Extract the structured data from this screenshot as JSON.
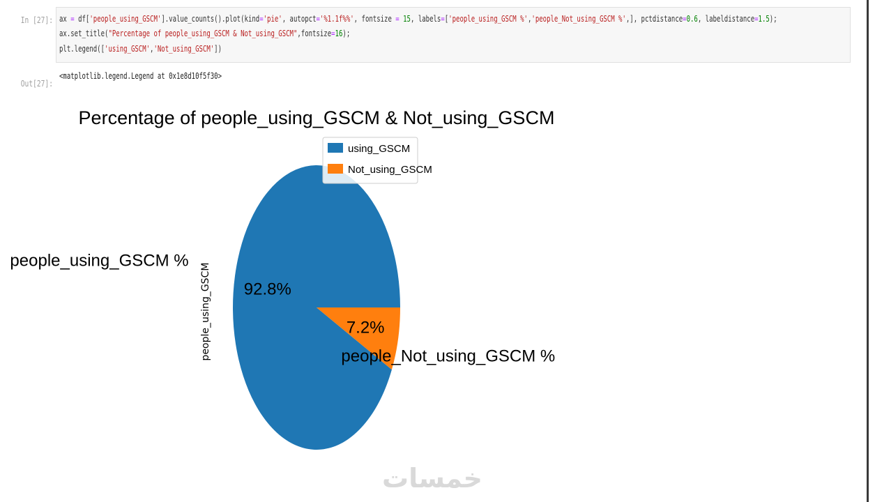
{
  "notebook": {
    "in_prompt": "In [27]:",
    "out_prompt": "Out[27]:",
    "code_lines": [
      [
        {
          "t": "ax ",
          "c": "kw"
        },
        {
          "t": "=",
          "c": "op"
        },
        {
          "t": " df[",
          "c": "kw"
        },
        {
          "t": "'people_using_GSCM'",
          "c": "str"
        },
        {
          "t": "].value_counts().plot(kind",
          "c": "kw"
        },
        {
          "t": "=",
          "c": "op"
        },
        {
          "t": "'pie'",
          "c": "str"
        },
        {
          "t": ", autopct",
          "c": "kw"
        },
        {
          "t": "=",
          "c": "op"
        },
        {
          "t": "'%1.1f%%'",
          "c": "str"
        },
        {
          "t": ", fontsize ",
          "c": "kw"
        },
        {
          "t": "=",
          "c": "op"
        },
        {
          "t": " ",
          "c": "kw"
        },
        {
          "t": "15",
          "c": "num"
        },
        {
          "t": ", labels",
          "c": "kw"
        },
        {
          "t": "=",
          "c": "op"
        },
        {
          "t": "[",
          "c": "kw"
        },
        {
          "t": "'people_using_GSCM %'",
          "c": "str"
        },
        {
          "t": ",",
          "c": "kw"
        },
        {
          "t": "'people_Not_using_GSCM %'",
          "c": "str"
        },
        {
          "t": ",], pctdistance",
          "c": "kw"
        },
        {
          "t": "=",
          "c": "op"
        },
        {
          "t": "0.6",
          "c": "num"
        },
        {
          "t": ", labeldistance",
          "c": "kw"
        },
        {
          "t": "=",
          "c": "op"
        },
        {
          "t": "1.5",
          "c": "num"
        },
        {
          "t": ");",
          "c": "kw"
        }
      ],
      [
        {
          "t": "ax.set_title(",
          "c": "kw"
        },
        {
          "t": "\"Percentage of people_using_GSCM & Not_using_GSCM\"",
          "c": "str"
        },
        {
          "t": ",fontsize",
          "c": "kw"
        },
        {
          "t": "=",
          "c": "op"
        },
        {
          "t": "16",
          "c": "num"
        },
        {
          "t": ");",
          "c": "kw"
        }
      ],
      [
        {
          "t": "plt.legend([",
          "c": "kw"
        },
        {
          "t": "'using_GSCM'",
          "c": "str"
        },
        {
          "t": ",",
          "c": "kw"
        },
        {
          "t": "'Not_using_GSCM'",
          "c": "str"
        },
        {
          "t": "])",
          "c": "kw"
        }
      ]
    ],
    "output_text": "<matplotlib.legend.Legend at 0x1e8d10f5f30>"
  },
  "chart_data": {
    "type": "pie",
    "title": "Percentage of people_using_GSCM & Not_using_GSCM",
    "ylabel": "people_using_GSCM",
    "slices": [
      {
        "label": "people_using_GSCM %",
        "value": 92.8,
        "pct_label": "92.8%",
        "color": "#1f77b4"
      },
      {
        "label": "people_Not_using_GSCM %",
        "value": 7.2,
        "pct_label": "7.2%",
        "color": "#ff7f0e"
      }
    ],
    "legend": {
      "placement": "upper-center",
      "entries": [
        {
          "label": "using_GSCM",
          "color": "#1f77b4"
        },
        {
          "label": "Not_using_GSCM",
          "color": "#ff7f0e"
        }
      ]
    }
  },
  "watermark": "خمسات"
}
